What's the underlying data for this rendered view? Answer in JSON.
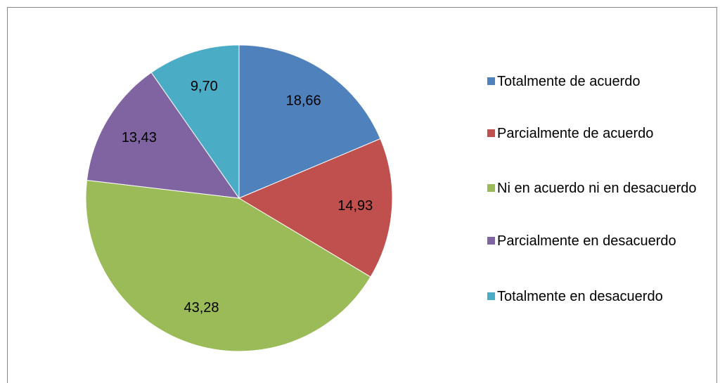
{
  "chart_data": {
    "type": "pie",
    "categories": [
      "Totalmente de acuerdo",
      "Parcialmente de acuerdo",
      "Ni en acuerdo ni en desacuerdo",
      "Parcialmente en desacuerdo",
      "Totalmente en desacuerdo"
    ],
    "values": [
      18.66,
      14.93,
      43.28,
      13.43,
      9.7
    ],
    "value_labels": [
      "18,66",
      "14,93",
      "43,28",
      "13,43",
      "9,70"
    ],
    "colors": [
      "#4f81bd",
      "#c0504d",
      "#9bbb59",
      "#8064a2",
      "#4bacc6"
    ],
    "legend": "right"
  }
}
